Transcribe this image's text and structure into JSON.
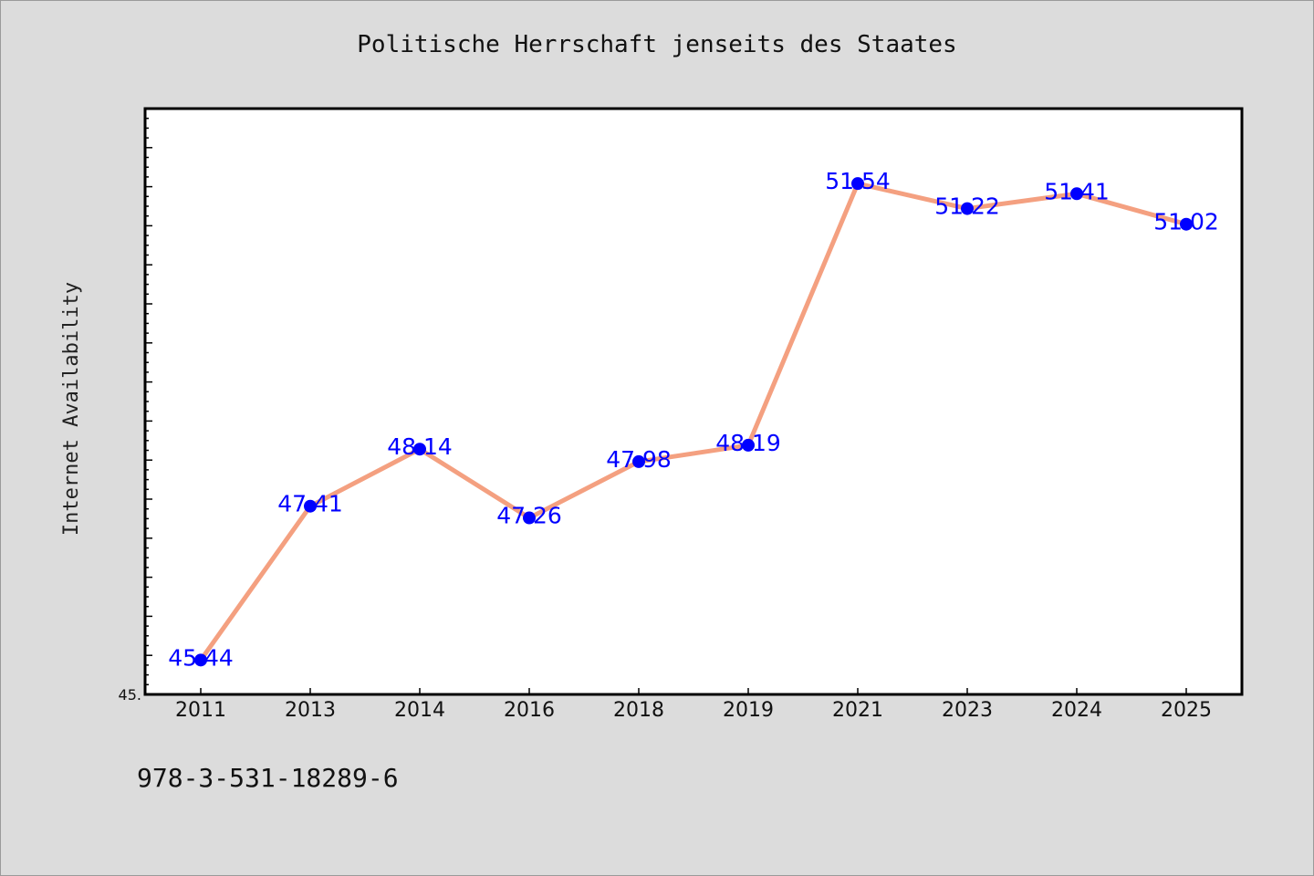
{
  "chart_data": {
    "type": "line",
    "title": "Politische Herrschaft jenseits des Staates",
    "xlabel": "",
    "ylabel": "Internet Availability",
    "categories": [
      "2011",
      "2013",
      "2014",
      "2016",
      "2018",
      "2019",
      "2021",
      "2023",
      "2024",
      "2025"
    ],
    "series": [
      {
        "values": [
          45.44,
          47.41,
          48.14,
          47.26,
          47.98,
          48.19,
          51.54,
          51.22,
          51.41,
          51.02
        ],
        "data_labels": [
          "45.44",
          "47.41",
          "48.14",
          "47.26",
          "47.98",
          "48.19",
          "51.54",
          "51.22",
          "51.41",
          "51.02"
        ]
      }
    ],
    "ylim": [
      45.0,
      52.5
    ],
    "y_tick_labels": [
      "45."
    ],
    "grid": false,
    "line_color": "#f4a080",
    "marker_color": "#0000ff",
    "label_color": "#0000ff"
  },
  "footer": {
    "code": "978-3-531-18289-6"
  }
}
